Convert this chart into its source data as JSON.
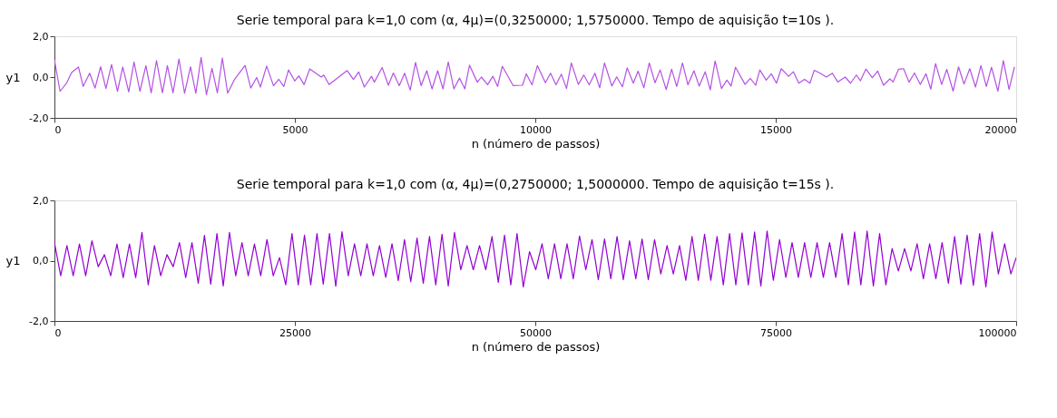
{
  "chart_data": [
    {
      "type": "line",
      "title": "Serie temporal para k=1,0 com (α, 4μ)=(0,3250000; 1,5750000. Tempo de aquisição t=10s ).",
      "xlabel": "n (número de passos)",
      "ylabel": "y1",
      "x": [
        0,
        117,
        260,
        357,
        500,
        597,
        733,
        844,
        961,
        1071,
        1188,
        1311,
        1421,
        1545,
        1655,
        1778,
        1902,
        2012,
        2122,
        2246,
        2349,
        2466,
        2590,
        2706,
        2830,
        2940,
        3050,
        3161,
        3277,
        3388,
        3492,
        3602,
        3751,
        3965,
        4082,
        4206,
        4283,
        4413,
        4556,
        4666,
        4770,
        4868,
        4997,
        5082,
        5192,
        5309,
        5549,
        5601,
        5711,
        6088,
        6217,
        6328,
        6445,
        6594,
        6652,
        6815,
        6944,
        7048,
        7171,
        7282,
        7399,
        7509,
        7626,
        7743,
        7853,
        7970,
        8080,
        8190,
        8307,
        8424,
        8534,
        8632,
        8794,
        8878,
        9008,
        9118,
        9216,
        9313,
        9540,
        9735,
        9813,
        9931,
        10044,
        10210,
        10317,
        10430,
        10543,
        10649,
        10749,
        10895,
        11008,
        11121,
        11240,
        11340,
        11440,
        11592,
        11692,
        11812,
        11911,
        12038,
        12137,
        12257,
        12370,
        12490,
        12596,
        12722,
        12835,
        12941,
        13061,
        13174,
        13300,
        13407,
        13533,
        13639,
        13739,
        13872,
        13985,
        14071,
        14164,
        14363,
        14470,
        14583,
        14669,
        14802,
        14908,
        15015,
        15114,
        15267,
        15367,
        15480,
        15599,
        15712,
        15799,
        15925,
        16051,
        16178,
        16290,
        16443,
        16556,
        16676,
        16762,
        16875,
        17008,
        17121,
        17241,
        17374,
        17440,
        17553,
        17659,
        17772,
        17885,
        18005,
        18125,
        18224,
        18324,
        18450,
        18557,
        18689,
        18802,
        18915,
        19035,
        19154,
        19267,
        19380,
        19487,
        19620,
        19733,
        19852,
        19965
      ],
      "series": [
        {
          "color": "#b452e4",
          "values": [
            0.84,
            -0.7,
            -0.27,
            0.22,
            0.49,
            -0.46,
            0.19,
            -0.54,
            0.51,
            -0.56,
            0.62,
            -0.7,
            0.49,
            -0.73,
            0.74,
            -0.7,
            0.56,
            -0.77,
            0.81,
            -0.77,
            0.56,
            -0.77,
            0.88,
            -0.79,
            0.51,
            -0.8,
            0.96,
            -0.86,
            0.43,
            -0.77,
            0.93,
            -0.79,
            -0.09,
            0.57,
            -0.54,
            -0.02,
            -0.49,
            0.54,
            -0.43,
            -0.11,
            -0.46,
            0.35,
            -0.19,
            0.06,
            -0.37,
            0.4,
            0.0,
            0.1,
            -0.37,
            0.32,
            -0.12,
            0.25,
            -0.49,
            0.04,
            -0.25,
            0.47,
            -0.4,
            0.2,
            -0.42,
            0.19,
            -0.64,
            0.72,
            -0.42,
            0.31,
            -0.58,
            0.31,
            -0.58,
            0.74,
            -0.58,
            -0.05,
            -0.58,
            0.58,
            -0.25,
            0.0,
            -0.37,
            0.04,
            -0.46,
            0.53,
            -0.42,
            -0.4,
            0.16,
            -0.38,
            0.56,
            -0.28,
            0.19,
            -0.38,
            0.14,
            -0.56,
            0.69,
            -0.36,
            0.1,
            -0.38,
            0.19,
            -0.53,
            0.69,
            -0.44,
            0.01,
            -0.48,
            0.45,
            -0.3,
            0.29,
            -0.53,
            0.69,
            -0.28,
            0.35,
            -0.61,
            0.38,
            -0.46,
            0.69,
            -0.38,
            0.31,
            -0.44,
            0.26,
            -0.63,
            0.79,
            -0.56,
            -0.15,
            -0.44,
            0.48,
            -0.36,
            -0.06,
            -0.4,
            0.35,
            -0.15,
            0.16,
            -0.3,
            0.41,
            0.04,
            0.26,
            -0.3,
            -0.11,
            -0.3,
            0.33,
            0.19,
            0.0,
            0.19,
            -0.24,
            0.0,
            -0.3,
            0.1,
            -0.18,
            0.39,
            -0.03,
            0.29,
            -0.4,
            -0.09,
            -0.24,
            0.38,
            0.41,
            -0.25,
            0.2,
            -0.36,
            0.16,
            -0.59,
            0.66,
            -0.36,
            0.38,
            -0.69,
            0.5,
            -0.34,
            0.41,
            -0.49,
            0.56,
            -0.46,
            0.48,
            -0.69,
            0.81,
            -0.61,
            0.5
          ]
        }
      ],
      "xlim": [
        0,
        20000
      ],
      "xticks": [
        0,
        5000,
        10000,
        15000,
        20000
      ],
      "ylim": [
        -2,
        2
      ],
      "yticks": [
        {
          "value": -2,
          "label": "-2,0"
        },
        {
          "value": 0,
          "label": "0,0"
        },
        {
          "value": 2,
          "label": "2,0"
        }
      ]
    },
    {
      "type": "line",
      "title": "Serie temporal para k=1,0 com (α, 4μ)=(0,2750000; 1,5000000. Tempo de aquisição t=15s ).",
      "xlabel": "n (número de passos)",
      "ylabel": "y1",
      "x": [
        0,
        650,
        1300,
        1950,
        2600,
        3250,
        3900,
        4550,
        5200,
        5850,
        6500,
        7150,
        7800,
        8450,
        9100,
        9750,
        10400,
        11050,
        11700,
        12350,
        13000,
        13650,
        14300,
        14950,
        15600,
        16250,
        16900,
        17550,
        18200,
        18850,
        19500,
        20150,
        20800,
        21450,
        22100,
        22750,
        23400,
        24050,
        24700,
        25350,
        26000,
        26650,
        27300,
        27950,
        28600,
        29250,
        29900,
        30550,
        31200,
        31850,
        32500,
        33150,
        33800,
        34450,
        35100,
        35750,
        36400,
        37050,
        37700,
        38350,
        39000,
        39650,
        40300,
        40950,
        41600,
        42250,
        42900,
        43550,
        44200,
        44850,
        45500,
        46150,
        46800,
        47450,
        48100,
        48750,
        49400,
        50050,
        50700,
        51350,
        52000,
        52650,
        53300,
        53950,
        54600,
        55250,
        55900,
        56550,
        57200,
        57850,
        58500,
        59150,
        59800,
        60450,
        61100,
        61750,
        62400,
        63050,
        63700,
        64350,
        65000,
        65650,
        66300,
        66950,
        67600,
        68250,
        68900,
        69550,
        70200,
        70850,
        71500,
        72150,
        72800,
        73450,
        74100,
        74750,
        75400,
        76050,
        76700,
        77350,
        78000,
        78650,
        79300,
        79950,
        80600,
        81250,
        81900,
        82550,
        83200,
        83850,
        84500,
        85150,
        85800,
        86450,
        87100,
        87750,
        88400,
        89050,
        89700,
        90350,
        91000,
        91650,
        92300,
        92950,
        93600,
        94250,
        94900,
        95550,
        96200,
        96850,
        97500,
        98150,
        98800,
        99450,
        100000
      ],
      "series": [
        {
          "color": "#9400d3",
          "values": [
            0.6,
            -0.5,
            0.5,
            -0.5,
            0.55,
            -0.5,
            0.66,
            -0.2,
            0.2,
            -0.5,
            0.55,
            -0.56,
            0.55,
            -0.56,
            0.94,
            -0.8,
            0.5,
            -0.5,
            0.2,
            -0.2,
            0.6,
            -0.56,
            0.6,
            -0.75,
            0.84,
            -0.78,
            0.9,
            -0.84,
            0.94,
            -0.5,
            0.6,
            -0.5,
            0.55,
            -0.5,
            0.7,
            -0.5,
            0.1,
            -0.8,
            0.9,
            -0.8,
            0.85,
            -0.8,
            0.9,
            -0.78,
            0.9,
            -0.85,
            0.96,
            -0.5,
            0.56,
            -0.5,
            0.56,
            -0.5,
            0.5,
            -0.55,
            0.56,
            -0.66,
            0.7,
            -0.7,
            0.75,
            -0.75,
            0.8,
            -0.8,
            0.88,
            -0.84,
            0.94,
            -0.3,
            0.5,
            -0.3,
            0.5,
            -0.3,
            0.8,
            -0.72,
            0.85,
            -0.8,
            0.9,
            -0.87,
            0.3,
            -0.3,
            0.56,
            -0.6,
            0.56,
            -0.6,
            0.56,
            -0.6,
            0.82,
            -0.3,
            0.7,
            -0.63,
            0.72,
            -0.6,
            0.8,
            -0.63,
            0.66,
            -0.6,
            0.72,
            -0.63,
            0.7,
            -0.44,
            0.5,
            -0.44,
            0.5,
            -0.65,
            0.8,
            -0.65,
            0.88,
            -0.65,
            0.8,
            -0.8,
            0.9,
            -0.8,
            0.92,
            -0.8,
            0.95,
            -0.84,
            0.98,
            -0.65,
            0.7,
            -0.55,
            0.6,
            -0.55,
            0.6,
            -0.55,
            0.6,
            -0.55,
            0.6,
            -0.55,
            0.9,
            -0.8,
            0.95,
            -0.8,
            0.98,
            -0.84,
            0.9,
            -0.8,
            0.4,
            -0.34,
            0.4,
            -0.34,
            0.56,
            -0.6,
            0.56,
            -0.6,
            0.6,
            -0.75,
            0.8,
            -0.78,
            0.85,
            -0.82,
            0.9,
            -0.87,
            0.95,
            -0.44,
            0.56,
            -0.44,
            0.1
          ]
        }
      ],
      "xlim": [
        0,
        100000
      ],
      "xticks": [
        0,
        25000,
        50000,
        75000,
        100000
      ],
      "ylim": [
        -2,
        2
      ],
      "yticks": [
        {
          "value": -2,
          "label": "-2,0"
        },
        {
          "value": 0,
          "label": "0,0"
        },
        {
          "value": 2,
          "label": "2,0"
        }
      ]
    }
  ]
}
